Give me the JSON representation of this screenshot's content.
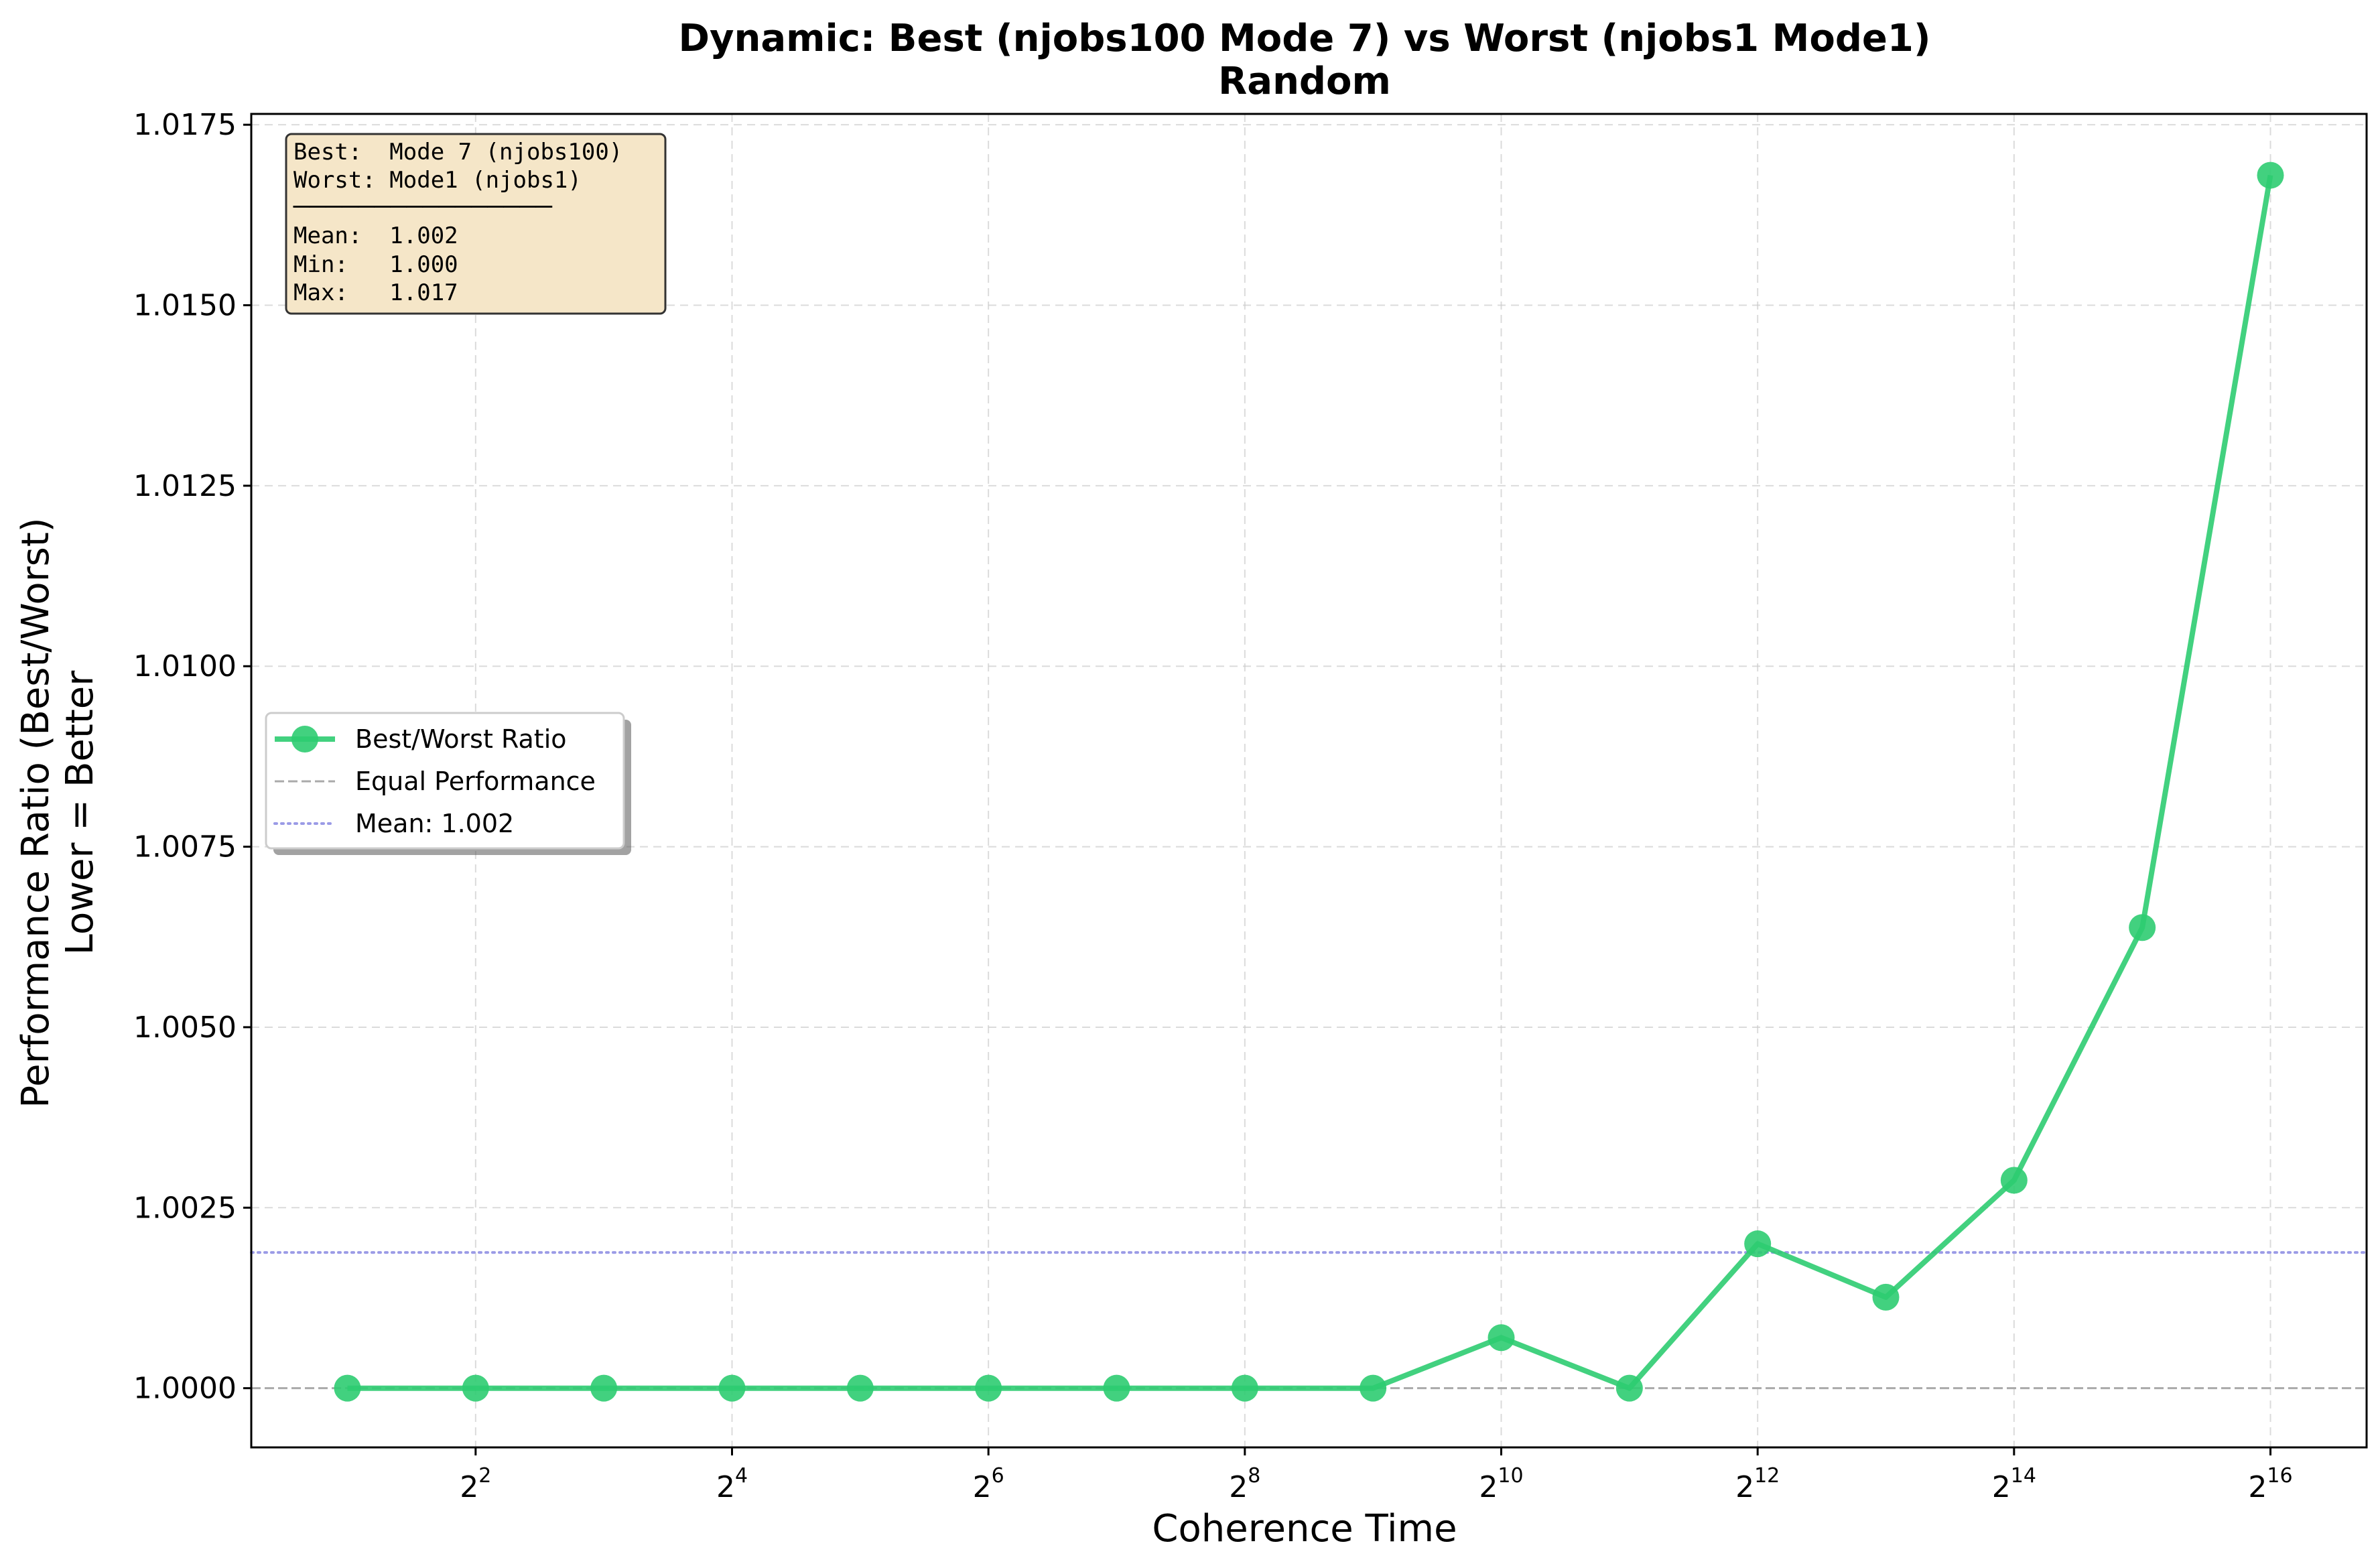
{
  "chart_data": {
    "type": "line",
    "title": "Dynamic: Best (njobs100 Mode 7) vs Worst (njobs1 Mode1)",
    "subtitle": "Random",
    "xlabel": "Coherence Time",
    "ylabel_line1": "Performance Ratio (Best/Worst)",
    "ylabel_line2": "Lower = Better",
    "x_scale": "log2",
    "x": [
      2,
      4,
      8,
      16,
      32,
      64,
      128,
      256,
      512,
      1024,
      2048,
      4096,
      8192,
      16384,
      32768,
      65536
    ],
    "x_exponents": [
      1,
      2,
      3,
      4,
      5,
      6,
      7,
      8,
      9,
      10,
      11,
      12,
      13,
      14,
      15,
      16
    ],
    "xlim_exponents": [
      0.25,
      16.75
    ],
    "x_ticks": [
      {
        "exp": 2,
        "base": "2",
        "power": "2"
      },
      {
        "exp": 4,
        "base": "2",
        "power": "4"
      },
      {
        "exp": 6,
        "base": "2",
        "power": "6"
      },
      {
        "exp": 8,
        "base": "2",
        "power": "8"
      },
      {
        "exp": 10,
        "base": "2",
        "power": "10"
      },
      {
        "exp": 12,
        "base": "2",
        "power": "12"
      },
      {
        "exp": 14,
        "base": "2",
        "power": "14"
      },
      {
        "exp": 16,
        "base": "2",
        "power": "16"
      }
    ],
    "ylim": [
      0.99918,
      1.01765
    ],
    "y_ticks": [
      "1.0000",
      "1.0025",
      "1.0050",
      "1.0075",
      "1.0100",
      "1.0125",
      "1.0150",
      "1.0175"
    ],
    "y_tick_values": [
      1.0,
      1.0025,
      1.005,
      1.0075,
      1.01,
      1.0125,
      1.015,
      1.0175
    ],
    "grid": true,
    "series": [
      {
        "name": "Best/Worst Ratio",
        "color": "#2ecc71",
        "values": [
          1.0,
          1.0,
          1.0,
          1.0,
          1.0,
          1.0,
          1.0,
          1.0,
          1.0,
          1.0007,
          1.0,
          1.002,
          1.00126,
          1.00288,
          1.00638,
          1.0168
        ]
      }
    ],
    "reference_lines": [
      {
        "name": "Equal Performance",
        "y": 1.0,
        "color": "#aaaaaa",
        "style": "dashed"
      },
      {
        "name": "Mean: 1.002",
        "y": 1.00188,
        "color": "#9b9be6",
        "style": "dotted"
      }
    ],
    "legend": {
      "placement": "center-left",
      "entries": [
        "Best/Worst Ratio",
        "Equal Performance",
        "Mean: 1.002"
      ]
    },
    "stats_box": {
      "placement": "top-left",
      "lines": [
        "Best:  Mode 7 (njobs100)",
        "Worst: Mode1 (njobs1)",
        "────────────────",
        "Mean:  1.002",
        "Min:   1.000",
        "Max:   1.017"
      ],
      "background": "#f5e6c8"
    }
  }
}
